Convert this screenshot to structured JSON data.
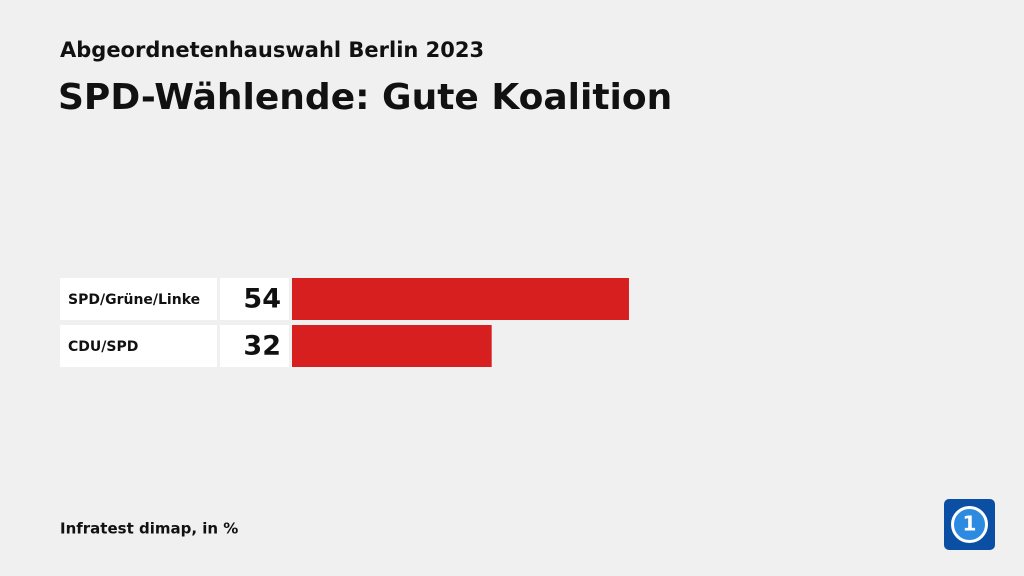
{
  "chart_data": {
    "type": "bar",
    "subtitle": "Abgeordnetenhauswahl Berlin 2023",
    "title": "SPD-Wählende: Gute Koalition",
    "categories": [
      "SPD/Grüne/Linke",
      "CDU/SPD"
    ],
    "values": [
      54,
      32
    ],
    "color": "#d71f20",
    "source": "Infratest dimap, in %"
  }
}
